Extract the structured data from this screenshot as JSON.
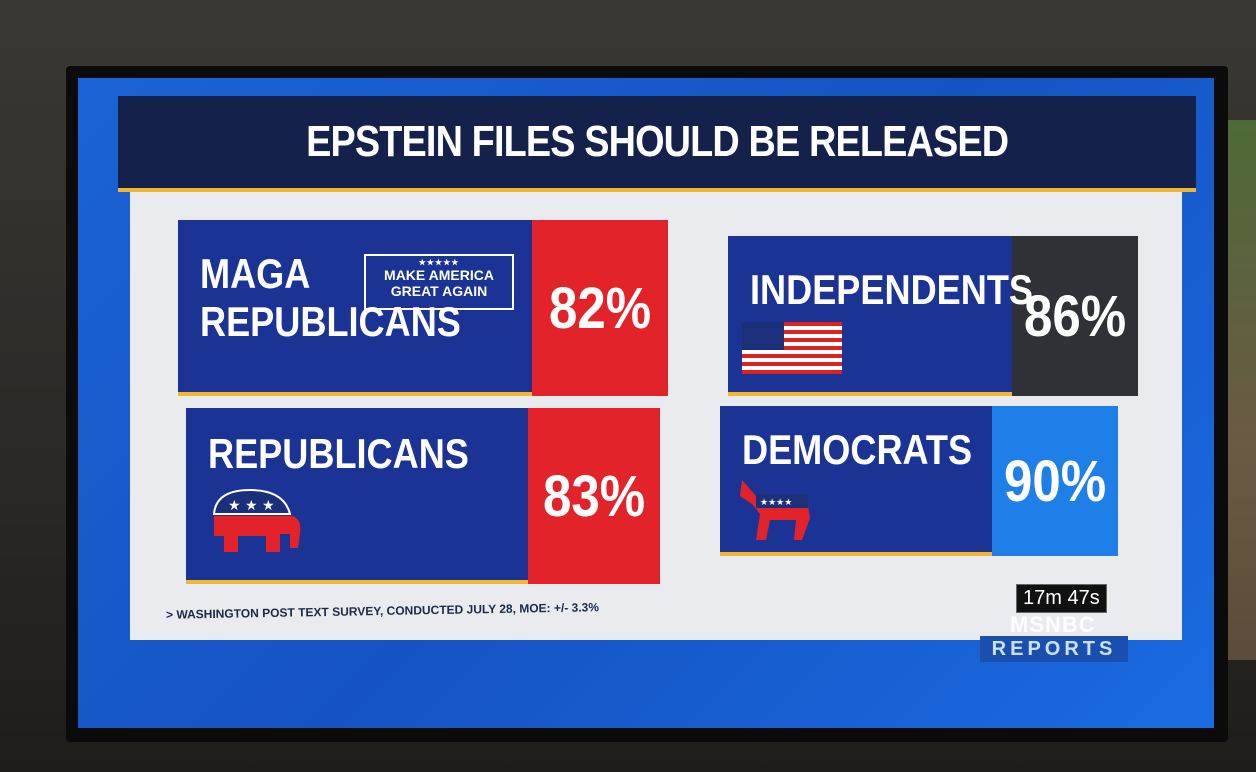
{
  "header": {
    "title": "EPSTEIN FILES SHOULD BE RELEASED"
  },
  "cards": [
    {
      "label": "MAGA REPUBLICANS",
      "value": "82%",
      "badge": {
        "stars": "★★★★★",
        "text": "MAKE AMERICA GREAT AGAIN"
      }
    },
    {
      "label": "INDEPENDENTS",
      "value": "86%"
    },
    {
      "label": "REPUBLICANS",
      "value": "83%"
    },
    {
      "label": "DEMOCRATS",
      "value": "90%"
    }
  ],
  "footer": {
    "source": "> WASHINGTON POST TEXT SURVEY, CONDUCTED JULY 28, MOE: +/- 3.3%"
  },
  "overlay": {
    "timer": "17m 47s",
    "network": "MSNBC",
    "show": "REPORTS"
  }
}
